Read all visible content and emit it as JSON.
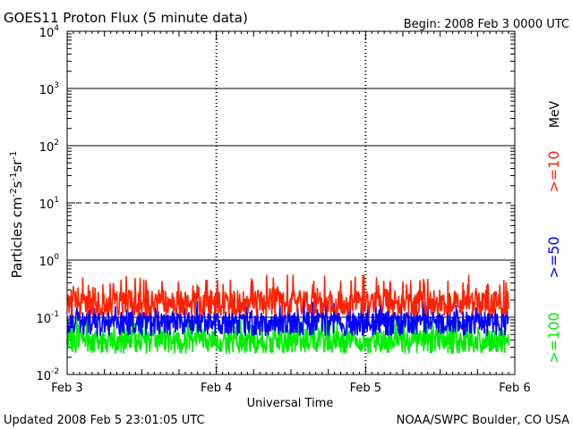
{
  "header": {
    "title": "GOES11 Proton Flux (5 minute data)",
    "begin": "Begin: 2008 Feb 3 0000 UTC"
  },
  "footer": {
    "updated": "Updated 2008 Feb  5 23:01:05 UTC",
    "credit": "NOAA/SWPC Boulder, CO USA"
  },
  "colors": {
    "ge10": "#ff2200",
    "ge50": "#0000ff",
    "ge100": "#00ee00",
    "grid": "#000000"
  },
  "chart_data": {
    "type": "line",
    "title": "GOES11 Proton Flux (5 minute data)",
    "xlabel": "Universal Time",
    "ylabel_parts": [
      "Particles cm",
      "-2",
      "s",
      "-1",
      "sr",
      "-1"
    ],
    "unit_label": "MeV",
    "yscale": "log",
    "ylim": [
      0.01,
      10000
    ],
    "xlim": [
      "2008-02-03 00:00",
      "2008-02-06 00:00"
    ],
    "x_ticks": [
      "Feb 3",
      "Feb 4",
      "Feb 5",
      "Feb 6"
    ],
    "y_ticks": [
      {
        "base": "10",
        "exp": "-2"
      },
      {
        "base": "10",
        "exp": "-1"
      },
      {
        "base": "10",
        "exp": "0"
      },
      {
        "base": "10",
        "exp": "1"
      },
      {
        "base": "10",
        "exp": "2"
      },
      {
        "base": "10",
        "exp": "3"
      },
      {
        "base": "10",
        "exp": "4"
      }
    ],
    "grid": "solid lines at 10^-1, 10^0, 10^2, 10^3; dashed at 10^1",
    "x_end": "2008-02-05 23:00",
    "series": [
      {
        "name": ">=10",
        "color": "#ff2200",
        "typical": 0.18,
        "range": [
          0.1,
          0.55
        ]
      },
      {
        "name": ">=50",
        "color": "#0000ff",
        "typical": 0.085,
        "range": [
          0.045,
          0.2
        ]
      },
      {
        "name": ">=100",
        "color": "#00ee00",
        "typical": 0.04,
        "range": [
          0.022,
          0.1
        ]
      }
    ]
  }
}
